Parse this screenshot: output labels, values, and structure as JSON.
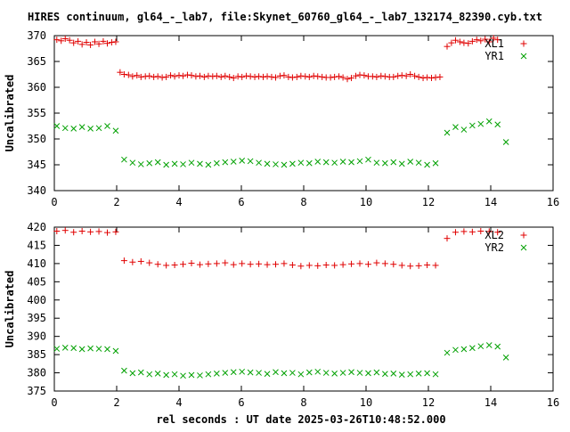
{
  "title": "HIRES continuum, gl64_-_lab7, file:Skynet_60760_gl64_-_lab7_132174_82390.cyb.txt",
  "xlabel": "rel seconds : UT date 2025-03-26T10:48:52.000",
  "colors": {
    "red": "#e00000",
    "green": "#00a000"
  },
  "chart_data": [
    {
      "type": "scatter",
      "ylabel": "Uncalibrated",
      "xlim": [
        0,
        16
      ],
      "ylim": [
        340,
        370
      ],
      "xticks": [
        0,
        2,
        4,
        6,
        8,
        10,
        12,
        14,
        16
      ],
      "yticks": [
        340,
        345,
        350,
        355,
        360,
        365,
        370
      ],
      "grid": false,
      "legend_position": "top-right",
      "series": [
        {
          "name": "XL1",
          "marker": "plus",
          "color": "#e00000",
          "x": [
            0.08,
            0.22,
            0.35,
            0.49,
            0.62,
            0.76,
            0.89,
            1.03,
            1.16,
            1.3,
            1.43,
            1.57,
            1.7,
            1.84,
            1.97,
            2.11,
            2.24,
            2.38,
            2.51,
            2.65,
            2.78,
            2.92,
            3.05,
            3.19,
            3.32,
            3.46,
            3.59,
            3.73,
            3.86,
            4.0,
            4.13,
            4.27,
            4.4,
            4.54,
            4.67,
            4.81,
            4.94,
            5.08,
            5.21,
            5.35,
            5.48,
            5.62,
            5.75,
            5.89,
            6.02,
            6.16,
            6.29,
            6.43,
            6.56,
            6.7,
            6.83,
            6.97,
            7.1,
            7.24,
            7.37,
            7.51,
            7.64,
            7.78,
            7.91,
            8.05,
            8.18,
            8.32,
            8.45,
            8.59,
            8.72,
            8.86,
            8.99,
            9.13,
            9.26,
            9.4,
            9.53,
            9.67,
            9.8,
            9.94,
            10.07,
            10.21,
            10.34,
            10.48,
            10.61,
            10.75,
            10.88,
            11.02,
            11.15,
            11.29,
            11.42,
            11.56,
            11.69,
            11.83,
            11.96,
            12.1,
            12.23,
            12.37,
            12.6,
            12.74,
            12.87,
            13.01,
            13.14,
            13.28,
            13.41,
            13.55,
            13.68,
            13.82,
            13.95,
            14.09,
            14.22
          ],
          "y": [
            369.2,
            369.0,
            369.4,
            369.1,
            368.6,
            368.9,
            368.3,
            368.7,
            368.2,
            368.8,
            368.4,
            368.9,
            368.5,
            368.7,
            368.8,
            362.9,
            362.5,
            362.4,
            362.1,
            362.3,
            362.0,
            362.1,
            362.2,
            362.0,
            362.1,
            361.9,
            362.0,
            362.3,
            362.1,
            362.3,
            362.2,
            362.4,
            362.3,
            362.1,
            362.2,
            362.0,
            362.2,
            362.1,
            362.2,
            362.0,
            362.2,
            362.0,
            361.8,
            362.1,
            362.0,
            362.2,
            362.1,
            362.0,
            362.1,
            362.0,
            362.1,
            362.0,
            361.9,
            362.2,
            362.3,
            362.0,
            361.9,
            362.0,
            362.2,
            362.1,
            362.0,
            362.2,
            362.1,
            362.0,
            361.9,
            361.9,
            362.0,
            362.1,
            361.9,
            361.6,
            361.8,
            362.2,
            362.4,
            362.3,
            362.1,
            362.1,
            362.0,
            362.2,
            362.1,
            362.0,
            362.0,
            362.2,
            362.3,
            362.2,
            362.5,
            362.2,
            362.0,
            361.8,
            361.9,
            361.8,
            361.9,
            362.0,
            367.9,
            368.6,
            369.1,
            368.8,
            368.6,
            368.5,
            368.9,
            369.2,
            369.0,
            369.3,
            368.8,
            369.5,
            369.2
          ],
          "x_sparse": [
            0.2,
            0.45,
            0.78,
            1.02,
            1.28,
            1.55,
            1.78,
            2.05,
            2.32,
            2.55,
            2.78,
            3.05,
            3.32,
            3.55,
            3.78,
            4.05,
            4.32,
            4.55,
            4.78,
            5.05,
            5.32,
            5.55,
            5.78,
            6.05,
            6.32,
            6.55,
            6.78,
            7.05,
            7.32,
            7.55,
            7.78,
            8.05,
            8.32,
            8.55,
            8.78,
            9.05,
            9.32,
            9.55,
            9.78,
            10.05,
            10.32,
            10.55,
            10.78,
            11.05,
            11.32,
            11.55,
            11.78,
            12.05,
            12.32,
            12.6,
            12.85,
            13.1,
            13.35,
            13.6,
            13.85,
            14.1,
            14.4
          ]
        },
        {
          "name": "YR1",
          "marker": "cross",
          "color": "#00a000",
          "x": [
            0.08,
            0.35,
            0.62,
            0.89,
            1.16,
            1.43,
            1.7,
            1.97,
            2.24,
            2.51,
            2.78,
            3.05,
            3.32,
            3.59,
            3.86,
            4.13,
            4.4,
            4.67,
            4.94,
            5.21,
            5.48,
            5.75,
            6.02,
            6.29,
            6.56,
            6.83,
            7.1,
            7.37,
            7.64,
            7.91,
            8.18,
            8.45,
            8.72,
            8.99,
            9.26,
            9.53,
            9.8,
            10.07,
            10.34,
            10.61,
            10.88,
            11.15,
            11.42,
            11.69,
            11.96,
            12.23,
            12.6,
            12.87,
            13.14,
            13.41,
            13.68,
            13.95,
            14.22,
            14.49
          ],
          "y": [
            352.5,
            352.1,
            352.0,
            352.3,
            352.0,
            352.1,
            352.5,
            351.6,
            346.0,
            345.4,
            345.1,
            345.3,
            345.5,
            345.0,
            345.2,
            345.1,
            345.4,
            345.2,
            345.0,
            345.3,
            345.5,
            345.6,
            345.8,
            345.7,
            345.4,
            345.2,
            345.1,
            345.0,
            345.2,
            345.4,
            345.3,
            345.6,
            345.5,
            345.4,
            345.6,
            345.5,
            345.7,
            346.0,
            345.4,
            345.3,
            345.5,
            345.2,
            345.6,
            345.4,
            345.0,
            345.3,
            351.2,
            352.3,
            351.8,
            352.6,
            352.9,
            353.4,
            352.8,
            349.4
          ]
        }
      ]
    },
    {
      "type": "scatter",
      "ylabel": "Uncalibrated",
      "xlim": [
        0,
        16
      ],
      "ylim": [
        375,
        420
      ],
      "xticks": [
        0,
        2,
        4,
        6,
        8,
        10,
        12,
        14,
        16
      ],
      "yticks": [
        375,
        380,
        385,
        390,
        395,
        400,
        405,
        410,
        415,
        420
      ],
      "grid": false,
      "legend_position": "top-right",
      "series": [
        {
          "name": "XL2",
          "marker": "plus",
          "color": "#e00000",
          "x": [
            0.08,
            0.35,
            0.62,
            0.89,
            1.16,
            1.43,
            1.7,
            1.97,
            2.24,
            2.51,
            2.78,
            3.05,
            3.32,
            3.59,
            3.86,
            4.13,
            4.4,
            4.67,
            4.94,
            5.21,
            5.48,
            5.75,
            6.02,
            6.29,
            6.56,
            6.83,
            7.1,
            7.37,
            7.64,
            7.91,
            8.18,
            8.45,
            8.72,
            8.99,
            9.26,
            9.53,
            9.8,
            10.07,
            10.34,
            10.61,
            10.88,
            11.15,
            11.42,
            11.69,
            11.96,
            12.23,
            12.6,
            12.87,
            13.14,
            13.41,
            13.68,
            13.95,
            14.22
          ],
          "y": [
            418.9,
            419.1,
            418.6,
            418.9,
            418.7,
            418.8,
            418.5,
            418.7,
            410.8,
            410.4,
            410.6,
            410.2,
            409.8,
            409.5,
            409.6,
            409.8,
            410.1,
            409.7,
            409.9,
            410.0,
            410.2,
            409.7,
            410.0,
            409.8,
            409.9,
            409.7,
            409.8,
            410.0,
            409.6,
            409.3,
            409.5,
            409.4,
            409.6,
            409.5,
            409.7,
            409.9,
            410.0,
            409.8,
            410.2,
            410.0,
            409.8,
            409.5,
            409.3,
            409.4,
            409.6,
            409.5,
            416.9,
            418.6,
            418.8,
            418.7,
            418.9,
            418.8,
            418.6
          ]
        },
        {
          "name": "YR2",
          "marker": "cross",
          "color": "#00a000",
          "x": [
            0.08,
            0.35,
            0.62,
            0.89,
            1.16,
            1.43,
            1.7,
            1.97,
            2.24,
            2.51,
            2.78,
            3.05,
            3.32,
            3.59,
            3.86,
            4.13,
            4.4,
            4.67,
            4.94,
            5.21,
            5.48,
            5.75,
            6.02,
            6.29,
            6.56,
            6.83,
            7.1,
            7.37,
            7.64,
            7.91,
            8.18,
            8.45,
            8.72,
            8.99,
            9.26,
            9.53,
            9.8,
            10.07,
            10.34,
            10.61,
            10.88,
            11.15,
            11.42,
            11.69,
            11.96,
            12.23,
            12.6,
            12.87,
            13.14,
            13.41,
            13.68,
            13.95,
            14.22,
            14.49
          ],
          "y": [
            386.6,
            386.9,
            386.8,
            386.5,
            386.7,
            386.6,
            386.5,
            386.0,
            380.6,
            379.9,
            380.1,
            379.6,
            379.8,
            379.4,
            379.6,
            379.2,
            379.4,
            379.3,
            379.6,
            379.8,
            380.0,
            380.2,
            380.3,
            380.1,
            380.0,
            379.7,
            380.2,
            379.9,
            380.0,
            379.6,
            380.1,
            380.3,
            380.0,
            379.8,
            380.0,
            380.2,
            380.0,
            379.9,
            380.1,
            379.7,
            379.8,
            379.5,
            379.6,
            379.8,
            379.9,
            379.6,
            385.5,
            386.3,
            386.5,
            386.8,
            387.3,
            387.6,
            387.2,
            384.2
          ]
        }
      ]
    }
  ]
}
